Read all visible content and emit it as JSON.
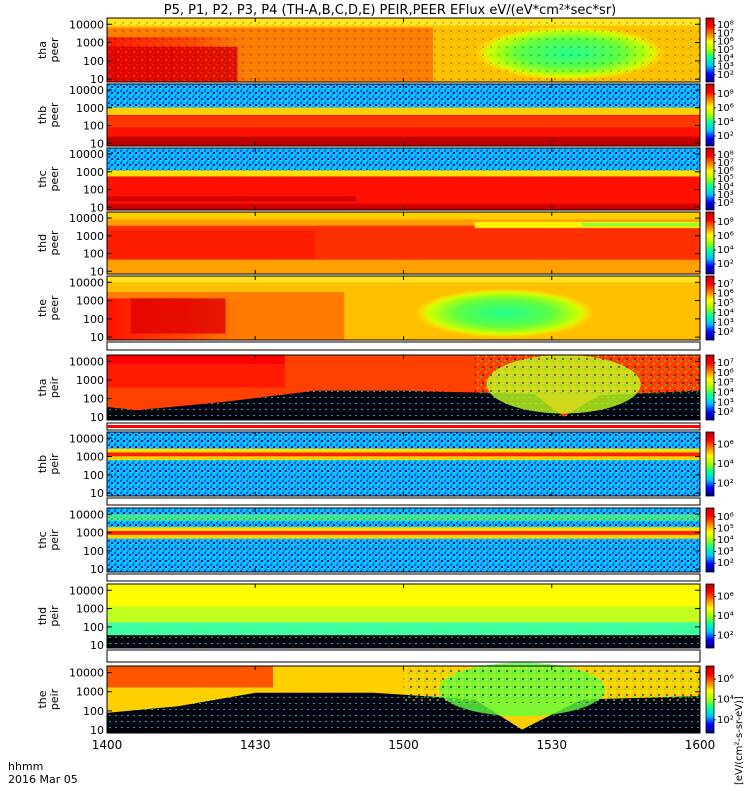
{
  "chart_data": {
    "type": "heatmap",
    "title": "P5, P1, P2, P3, P4 (TH-A,B,C,D,E) PEIR,PEER EFlux eV/(eV*cm²*sec*sr)",
    "x_ticks": [
      "1400",
      "1430",
      "1500",
      "1530",
      "1600"
    ],
    "x_range": [
      "1400",
      "1600"
    ],
    "x_footer_label": "hhmm",
    "date_label": "2016 Mar 05",
    "y_scale": "log",
    "y_ticks": [
      "10",
      "100",
      "1000",
      "10000"
    ],
    "colorbar_label": "[eV/(cm²-s-sr-eV)]",
    "colormap": [
      "#000080",
      "#0000ff",
      "#00c0ff",
      "#00ffa0",
      "#a0ff00",
      "#ffff00",
      "#ff8000",
      "#ff0000",
      "#c00000"
    ],
    "panels": [
      {
        "label_top": "tha",
        "label_bottom": "peer",
        "colorbar_ticks": [
          "10²",
          "10³",
          "10⁴",
          "10⁵",
          "10⁶",
          "10⁷",
          "10⁸"
        ]
      },
      {
        "label_top": "thb",
        "label_bottom": "peer",
        "colorbar_ticks": [
          "10²",
          "10⁴",
          "10⁶",
          "10⁸"
        ]
      },
      {
        "label_top": "thc",
        "label_bottom": "peer",
        "colorbar_ticks": [
          "10²",
          "10³",
          "10⁴",
          "10⁵",
          "10⁶",
          "10⁷",
          "10⁸"
        ]
      },
      {
        "label_top": "thd",
        "label_bottom": "peer",
        "colorbar_ticks": [
          "10²",
          "10⁴",
          "10⁶",
          "10⁸"
        ]
      },
      {
        "label_top": "the",
        "label_bottom": "peer",
        "colorbar_ticks": [
          "10²",
          "10³",
          "10⁴",
          "10⁵",
          "10⁶",
          "10⁷"
        ]
      },
      {
        "label_top": "tha",
        "label_bottom": "peir",
        "colorbar_ticks": [
          "10²",
          "10³",
          "10⁴",
          "10⁵",
          "10⁶",
          "10⁷"
        ]
      },
      {
        "label_top": "thb",
        "label_bottom": "peir",
        "colorbar_ticks": [
          "10²",
          "10⁴",
          "10⁶"
        ]
      },
      {
        "label_top": "thc",
        "label_bottom": "peir",
        "colorbar_ticks": [
          "10²",
          "10³",
          "10⁴",
          "10⁵",
          "10⁶"
        ]
      },
      {
        "label_top": "thd",
        "label_bottom": "peir",
        "colorbar_ticks": [
          "10²",
          "10⁴",
          "10⁶"
        ]
      },
      {
        "label_top": "the",
        "label_bottom": "peir",
        "colorbar_ticks": [
          "10²",
          "10⁴",
          "10⁶"
        ]
      }
    ]
  }
}
